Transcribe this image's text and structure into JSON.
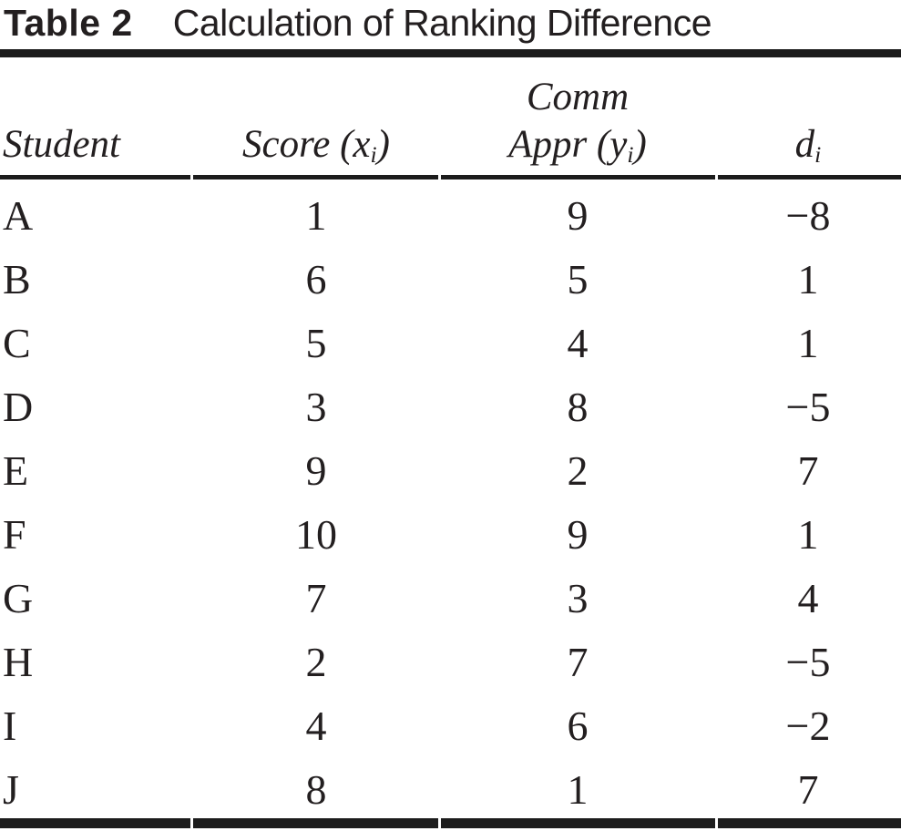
{
  "table": {
    "label": "Table 2",
    "title": "Calculation of Ranking Difference",
    "columns": {
      "student": "Student",
      "score_pre": "Score (x",
      "score_sub": "i",
      "score_post": ")",
      "comm_line1": "Comm",
      "appr_pre": "Appr (y",
      "appr_sub": "i",
      "appr_post": ")",
      "d_pre": "d",
      "d_sub": "i"
    },
    "rows": [
      {
        "student": "A",
        "score": "1",
        "comm_appr": "9",
        "d": "−8"
      },
      {
        "student": "B",
        "score": "6",
        "comm_appr": "5",
        "d": "1"
      },
      {
        "student": "C",
        "score": "5",
        "comm_appr": "4",
        "d": "1"
      },
      {
        "student": "D",
        "score": "3",
        "comm_appr": "8",
        "d": "−5"
      },
      {
        "student": "E",
        "score": "9",
        "comm_appr": "2",
        "d": "7"
      },
      {
        "student": "F",
        "score": "10",
        "comm_appr": "9",
        "d": "1"
      },
      {
        "student": "G",
        "score": "7",
        "comm_appr": "3",
        "d": "4"
      },
      {
        "student": "H",
        "score": "2",
        "comm_appr": "7",
        "d": "−5"
      },
      {
        "student": "I",
        "score": "4",
        "comm_appr": "6",
        "d": "−2"
      },
      {
        "student": "J",
        "score": "8",
        "comm_appr": "1",
        "d": "7"
      }
    ]
  },
  "colors": {
    "ink": "#231f20",
    "rule": "#1c1c1c",
    "background": "#ffffff"
  },
  "chart_data": {
    "type": "table",
    "title": "Table 2  Calculation of Ranking Difference",
    "columns": [
      "Student",
      "Score (x_i)",
      "Comm Appr (y_i)",
      "d_i"
    ],
    "rows": [
      [
        "A",
        1,
        9,
        -8
      ],
      [
        "B",
        6,
        5,
        1
      ],
      [
        "C",
        5,
        4,
        1
      ],
      [
        "D",
        3,
        8,
        -5
      ],
      [
        "E",
        9,
        2,
        7
      ],
      [
        "F",
        10,
        9,
        1
      ],
      [
        "G",
        7,
        3,
        4
      ],
      [
        "H",
        2,
        7,
        -5
      ],
      [
        "I",
        4,
        6,
        -2
      ],
      [
        "J",
        8,
        1,
        7
      ]
    ]
  }
}
